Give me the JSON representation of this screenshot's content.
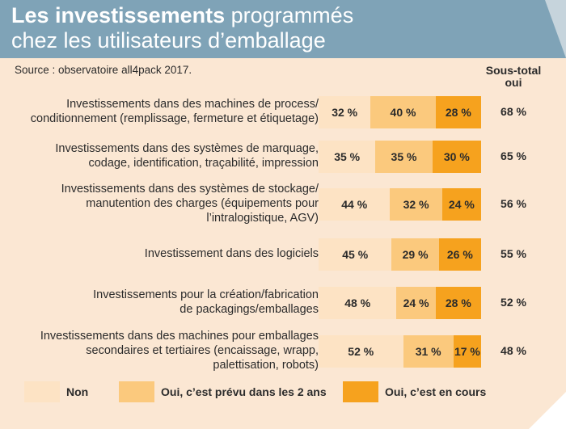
{
  "header": {
    "title_bold": "Les investissements",
    "title_rest": " programmés",
    "subtitle": "chez les utilisateurs d’emballage"
  },
  "source": "Source : observatoire all4pack 2017.",
  "subtotal_header": "Sous-total oui",
  "colors": {
    "non": "#fde3c4",
    "prevu": "#fbc97d",
    "en_cours": "#f6a21e",
    "background": "#fbe7d3",
    "header": "#7fa3b7"
  },
  "legend": [
    {
      "key": "non",
      "label": "Non"
    },
    {
      "key": "prevu",
      "label": "Oui, c’est prévu dans les 2 ans"
    },
    {
      "key": "en_cours",
      "label": "Oui, c’est en cours"
    }
  ],
  "chart_data": {
    "type": "bar",
    "stacked": true,
    "orientation": "horizontal",
    "title": "Les investissements programmés chez les utilisateurs d’emballage",
    "categories": [
      "Investissements dans des machines de process/ conditionnement (remplissage, fermeture et étiquetage)",
      "Investissements dans des systèmes de marquage, codage, identification, traçabilité, impression",
      "Investissements dans des systèmes de stockage/ manutention des charges (équipements pour l’intralogistique, AGV)",
      "Investissement dans des logiciels",
      "Investissements pour la création/fabrication de packagings/emballages",
      "Investissements dans des machines pour emballages secondaires et tertiaires (encaissage, wrapp, palettisation, robots)"
    ],
    "label_lines": [
      [
        "Investissements dans des machines de process/",
        "conditionnement (remplissage, fermeture et étiquetage)"
      ],
      [
        "Investissements dans des systèmes de marquage,",
        "codage, identification, traçabilité, impression"
      ],
      [
        "Investissements dans des systèmes de stockage/",
        "manutention des charges (équipements pour",
        "l’intralogistique, AGV)"
      ],
      [
        "Investissement dans des logiciels"
      ],
      [
        "Investissements pour la création/fabrication",
        "de packagings/emballages"
      ],
      [
        "Investissements dans des machines pour emballages",
        "secondaires et tertiaires (encaissage, wrapp,",
        "palettisation, robots)"
      ]
    ],
    "series": [
      {
        "name": "Non",
        "values": [
          32,
          35,
          44,
          45,
          48,
          52
        ]
      },
      {
        "name": "Oui, c’est prévu dans les 2 ans",
        "values": [
          40,
          35,
          32,
          29,
          24,
          31
        ]
      },
      {
        "name": "Oui, c’est en cours",
        "values": [
          28,
          30,
          24,
          26,
          28,
          17
        ]
      }
    ],
    "subtotal_oui": [
      68,
      65,
      56,
      55,
      52,
      48
    ],
    "unit": "%",
    "legend_position": "bottom"
  }
}
